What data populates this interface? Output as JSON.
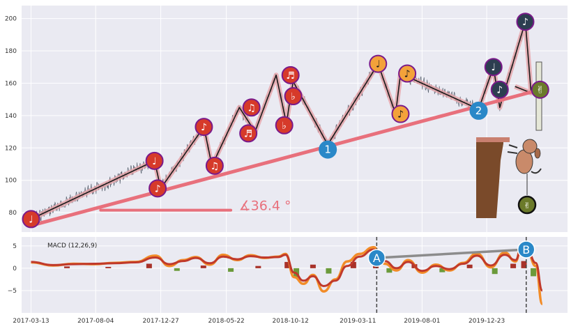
{
  "colors": {
    "panel_bg": "#eaeaf2",
    "grid": "#ffffff",
    "price_line": "#5a6370",
    "zigzag_outer": "#e6a3a8",
    "zigzag_inner": "#1a1a1a",
    "trend_line": "#e8707c",
    "macd_line": "#f28c28",
    "signal_line": "#c0392b",
    "hist_pos": "#a8322a",
    "hist_neg": "#6b9a3a",
    "marker_red": "#d63a2a",
    "marker_orange": "#f3a23a",
    "marker_dark": "#2c3e50",
    "marker_blue": "#2a88c8",
    "marker_olive": "#6b7a2a",
    "marker_border": "#7a1a8a",
    "divergence_line": "#8c8c8c",
    "cliff": "#7a4a2a"
  },
  "chart_data": [
    {
      "type": "line",
      "panel": "price",
      "x_ticks": [
        "2017-03-13",
        "2017-08-04",
        "2017-12-27",
        "2018-05-22",
        "2018-10-12",
        "2019-03-11",
        "2019-08-01",
        "2019-12-23"
      ],
      "y_ticks": [
        "80",
        "100",
        "120",
        "140",
        "160",
        "180",
        "200"
      ],
      "ylim": [
        68,
        208
      ],
      "xlim": [
        "2017-02-20",
        "2020-06-20"
      ],
      "grid": true,
      "series": [
        {
          "role": "zigzag",
          "x": [
            "2017-03-13",
            "2017-12-13",
            "2017-12-27",
            "2018-04-02",
            "2018-04-20",
            "2018-06-20",
            "2018-07-25",
            "2018-09-10",
            "2018-10-03",
            "2018-10-12",
            "2018-10-18",
            "2019-01-03",
            "2019-04-25",
            "2019-06-03",
            "2019-06-14",
            "2019-12-05",
            "2020-01-07",
            "2020-01-21",
            "2020-03-18",
            "2020-03-31",
            "2020-02-24"
          ],
          "y": [
            76,
            112,
            95,
            133,
            109,
            145,
            130,
            165,
            135,
            152,
            161,
            122,
            172,
            141,
            166,
            144,
            170,
            145,
            198,
            154,
            158
          ]
        },
        {
          "role": "trendline",
          "x": [
            "2017-03-13",
            "2020-04-20"
          ],
          "y": [
            72,
            156
          ]
        },
        {
          "role": "angle_baseline",
          "x": [
            "2017-08-15",
            "2018-06-01"
          ],
          "y": [
            81.5,
            81.5
          ]
        }
      ],
      "markers": [
        {
          "x": "2017-03-13",
          "y": 76,
          "glyph": "♩",
          "color": "red"
        },
        {
          "x": "2017-12-13",
          "y": 112,
          "glyph": "♩",
          "color": "red"
        },
        {
          "x": "2017-12-20",
          "y": 95,
          "glyph": "♪",
          "color": "red"
        },
        {
          "x": "2018-04-02",
          "y": 133,
          "glyph": "♪",
          "color": "red"
        },
        {
          "x": "2018-04-26",
          "y": 109,
          "glyph": "♫",
          "color": "red"
        },
        {
          "x": "2018-07-17",
          "y": 145,
          "glyph": "♫",
          "color": "red"
        },
        {
          "x": "2018-07-10",
          "y": 129,
          "glyph": "♬",
          "color": "red"
        },
        {
          "x": "2018-10-12",
          "y": 165,
          "glyph": "♬",
          "color": "red"
        },
        {
          "x": "2018-10-18",
          "y": 152,
          "glyph": "♭",
          "color": "red"
        },
        {
          "x": "2018-09-28",
          "y": 134,
          "glyph": "♭",
          "color": "red"
        },
        {
          "x": "2019-01-03",
          "y": 119,
          "glyph": "1",
          "color": "blue"
        },
        {
          "x": "2019-04-25",
          "y": 172,
          "glyph": "♩",
          "color": "orange"
        },
        {
          "x": "2019-06-14",
          "y": 141,
          "glyph": "♪",
          "color": "orange"
        },
        {
          "x": "2019-06-29",
          "y": 166,
          "glyph": "♪",
          "color": "orange"
        },
        {
          "x": "2019-12-05",
          "y": 143,
          "glyph": "2",
          "color": "blue"
        },
        {
          "x": "2020-01-07",
          "y": 170,
          "glyph": "♩",
          "color": "dark"
        },
        {
          "x": "2020-01-21",
          "y": 156,
          "glyph": "♪",
          "color": "dark"
        },
        {
          "x": "2020-03-18",
          "y": 198,
          "glyph": "♪",
          "color": "dark"
        },
        {
          "x": "2020-04-20",
          "y": 156,
          "glyph": "✌",
          "color": "olive"
        }
      ],
      "annotations": [
        {
          "text": "∡36.4 °",
          "x": "2018-05-22",
          "y": 85
        }
      ]
    },
    {
      "type": "line",
      "panel": "macd",
      "title": "MACD (12,26,9)",
      "x_ticks": [
        "2017-03-13",
        "2017-08-04",
        "2017-12-27",
        "2018-05-22",
        "2018-10-12",
        "2019-03-11",
        "2019-08-01",
        "2019-12-23"
      ],
      "y_ticks": [
        "5",
        "0",
        "−5"
      ],
      "ylim": [
        -10,
        7
      ],
      "grid": true,
      "vlines": [
        "2019-04-22",
        "2020-03-20"
      ],
      "divergence": {
        "from": {
          "x": "2019-04-22",
          "y": 2.3,
          "label": "A"
        },
        "to": {
          "x": "2020-03-20",
          "y": 4.2,
          "label": "B"
        }
      },
      "series": [
        {
          "role": "macd",
          "x": [
            "2017-03-13",
            "2017-05-01",
            "2017-06-15",
            "2017-08-01",
            "2017-09-15",
            "2017-11-01",
            "2017-12-15",
            "2018-01-15",
            "2018-02-15",
            "2018-03-15",
            "2018-04-15",
            "2018-05-15",
            "2018-06-15",
            "2018-07-15",
            "2018-08-15",
            "2018-09-15",
            "2018-10-01",
            "2018-10-20",
            "2018-11-10",
            "2018-12-01",
            "2018-12-25",
            "2019-01-20",
            "2019-02-15",
            "2019-03-15",
            "2019-04-15",
            "2019-05-10",
            "2019-06-05",
            "2019-07-01",
            "2019-08-01",
            "2019-09-01",
            "2019-10-01",
            "2019-11-01",
            "2019-12-01",
            "2020-01-01",
            "2020-02-01",
            "2020-02-25",
            "2020-03-10",
            "2020-03-25",
            "2020-04-10",
            "2020-04-25"
          ],
          "y": [
            1.3,
            0.6,
            1.0,
            0.9,
            1.2,
            1.4,
            2.8,
            0.5,
            1.8,
            2.5,
            0.8,
            3.0,
            1.8,
            2.9,
            2.3,
            2.6,
            3.2,
            -2.0,
            -3.5,
            -1.5,
            -5.2,
            -2.5,
            1.5,
            3.2,
            4.7,
            1.0,
            -0.5,
            1.8,
            -1.0,
            0.8,
            -0.5,
            1.2,
            3.3,
            0.2,
            3.5,
            1.5,
            5.2,
            3.0,
            0.5,
            -8.0
          ]
        },
        {
          "role": "signal",
          "x": [
            "2017-03-13",
            "2017-05-01",
            "2017-06-15",
            "2017-08-01",
            "2017-09-15",
            "2017-11-01",
            "2017-12-15",
            "2018-01-15",
            "2018-02-15",
            "2018-03-15",
            "2018-04-15",
            "2018-05-15",
            "2018-06-15",
            "2018-07-15",
            "2018-08-15",
            "2018-09-15",
            "2018-10-01",
            "2018-10-20",
            "2018-11-10",
            "2018-12-01",
            "2018-12-25",
            "2019-01-20",
            "2019-02-15",
            "2019-03-15",
            "2019-04-15",
            "2019-05-10",
            "2019-06-05",
            "2019-07-01",
            "2019-08-01",
            "2019-09-01",
            "2019-10-01",
            "2019-11-01",
            "2019-12-01",
            "2020-01-01",
            "2020-02-01",
            "2020-02-25",
            "2020-03-10",
            "2020-03-25",
            "2020-04-10",
            "2020-04-25"
          ],
          "y": [
            1.4,
            0.7,
            0.9,
            1.0,
            1.1,
            1.3,
            2.4,
            0.9,
            1.6,
            2.3,
            1.1,
            2.6,
            2.0,
            2.7,
            2.4,
            2.5,
            3.0,
            -1.0,
            -2.8,
            -1.8,
            -4.0,
            -2.8,
            0.5,
            2.6,
            4.2,
            1.6,
            0.0,
            1.4,
            -0.6,
            0.5,
            -0.2,
            1.0,
            2.8,
            0.6,
            3.0,
            1.8,
            4.6,
            3.4,
            1.2,
            -5.0
          ]
        },
        {
          "role": "histogram",
          "x": [
            "2017-06-01",
            "2017-09-01",
            "2017-12-01",
            "2018-02-01",
            "2018-04-01",
            "2018-06-01",
            "2018-08-01",
            "2018-10-05",
            "2018-10-25",
            "2018-12-01",
            "2019-01-05",
            "2019-03-01",
            "2019-04-20",
            "2019-05-20",
            "2019-07-15",
            "2019-09-15",
            "2019-11-15",
            "2020-01-10",
            "2020-02-20",
            "2020-03-15",
            "2020-04-05"
          ],
          "y": [
            0.4,
            0.3,
            1.0,
            -0.6,
            0.6,
            -0.8,
            0.5,
            1.4,
            -2.1,
            0.8,
            -1.2,
            1.4,
            1.0,
            -1.0,
            0.9,
            -0.9,
            0.8,
            -1.3,
            1.0,
            1.6,
            -1.8
          ]
        }
      ]
    }
  ]
}
